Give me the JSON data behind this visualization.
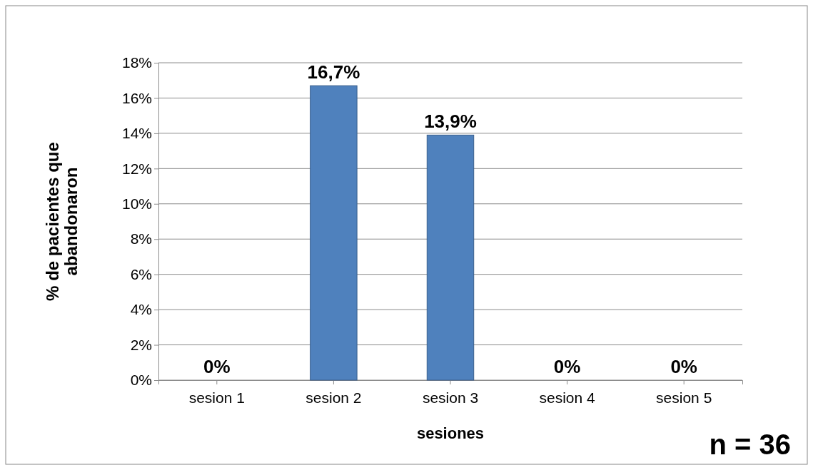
{
  "chart_data": {
    "type": "bar",
    "xlabel": "sesiones",
    "ylabel": "% de pacientes que abandonaron",
    "categories": [
      "sesion 1",
      "sesion 2",
      "sesion 3",
      "sesion 4",
      "sesion 5"
    ],
    "values": [
      0,
      16.7,
      13.9,
      0,
      0
    ],
    "value_labels": [
      "0%",
      "16,7%",
      "13,9%",
      "0%",
      "0%"
    ],
    "color": "#4f81bd",
    "ylim": [
      0,
      18
    ],
    "yticks": [
      {
        "value": 0,
        "label": "0%"
      },
      {
        "value": 2,
        "label": "2%"
      },
      {
        "value": 4,
        "label": "4%"
      },
      {
        "value": 6,
        "label": "6%"
      },
      {
        "value": 8,
        "label": "8%"
      },
      {
        "value": 10,
        "label": "10%"
      },
      {
        "value": 12,
        "label": "12%"
      },
      {
        "value": 14,
        "label": "14%"
      },
      {
        "value": 16,
        "label": "16%"
      },
      {
        "value": 18,
        "label": "18%"
      }
    ],
    "grid": "y",
    "annotations": [
      "n = 36"
    ]
  }
}
